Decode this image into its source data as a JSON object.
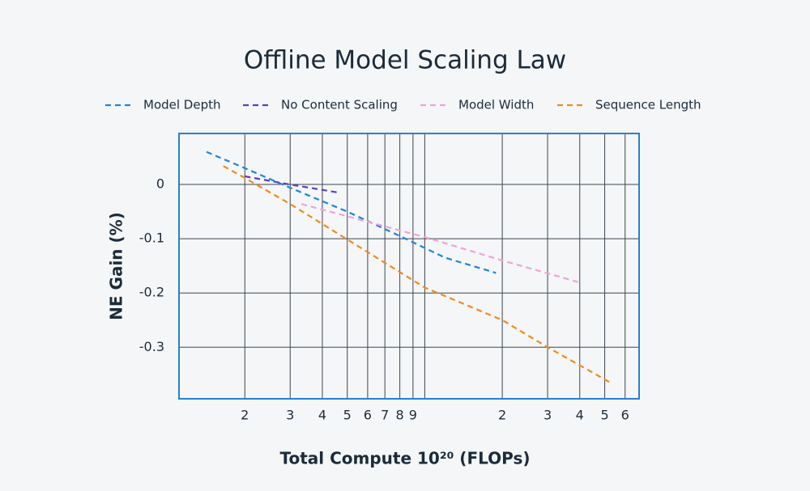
{
  "chart_data": {
    "type": "line",
    "title": "Offline Model Scaling Law",
    "xlabel": "Total Compute 10²⁰ (FLOPs)",
    "ylabel": "NE Gain (%)",
    "xscale": "log",
    "xlim": [
      1.11,
      68
    ],
    "ylim": [
      -0.395,
      0.094
    ],
    "xticks": [
      2,
      3,
      4,
      5,
      6,
      7,
      8,
      9,
      {
        "value": 20,
        "label": "2"
      },
      {
        "value": 30,
        "label": "3"
      },
      {
        "value": 40,
        "label": "4"
      },
      {
        "value": 50,
        "label": "5"
      },
      {
        "value": 60,
        "label": "6"
      }
    ],
    "xgrid_extra": [
      10
    ],
    "yticks": [
      0,
      -0.1,
      -0.2,
      -0.3
    ],
    "grid": true,
    "legend": "top",
    "series": [
      {
        "name": "Model Depth",
        "color": "#1f84dc",
        "x": [
          1.42,
          2,
          3,
          5,
          8,
          12,
          18.9
        ],
        "values": [
          0.06,
          0.03,
          -0.006,
          -0.05,
          -0.095,
          -0.135,
          -0.163
        ]
      },
      {
        "name": "No Content Scaling",
        "color": "#5a3fc0",
        "x": [
          2,
          3,
          4.63
        ],
        "values": [
          0.015,
          0.0,
          -0.015
        ]
      },
      {
        "name": "Model Width",
        "color": "#f2a2d2",
        "x": [
          3.32,
          10,
          20,
          40.9
        ],
        "values": [
          -0.036,
          -0.097,
          -0.14,
          -0.182
        ]
      },
      {
        "name": "Sequence Length",
        "color": "#f08a1a",
        "x": [
          1.65,
          2,
          3,
          10,
          20,
          30,
          52.1
        ],
        "values": [
          0.034,
          0.012,
          -0.036,
          -0.19,
          -0.25,
          -0.3,
          -0.364
        ]
      }
    ]
  }
}
